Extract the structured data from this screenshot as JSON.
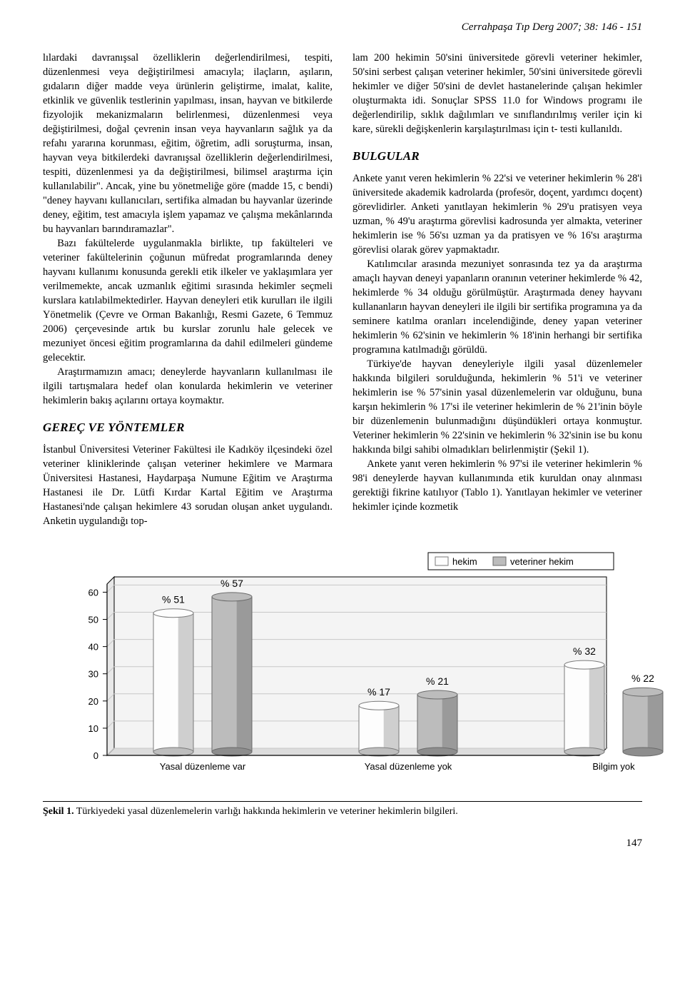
{
  "runningHead": "Cerrahpaşa Tıp Derg 2007; 38: 146 - 151",
  "left": {
    "p1": "lılardaki davranışsal özelliklerin değerlendirilmesi, tespiti, düzenlenmesi veya değiştirilmesi amacıyla; ilaçların, aşıların, gıdaların diğer madde veya ürünlerin geliştirme, imalat, kalite, etkinlik ve güvenlik testlerinin yapılması, insan, hayvan ve bitkilerde fizyolojik mekanizmaların belirlenmesi, düzenlenmesi veya değiştirilmesi, doğal çevrenin insan veya hayvanların sağlık ya da refahı yararına korunması, eğitim, öğretim, adli soruşturma, insan, hayvan veya bitkilerdeki davranışsal özelliklerin değerlendirilmesi, tespiti, düzenlenmesi ya da değiştirilmesi, bilimsel araştırma için kullanılabilir\". Ancak, yine bu yönetmeliğe göre (madde 15, c bendi) \"deney hayvanı kullanıcıları, sertifika almadan bu hayvanlar üzerinde deney, eğitim, test amacıyla işlem yapamaz ve çalışma mekânlarında bu hayvanları barındıramazlar\".",
    "p2": "Bazı fakültelerde uygulanmakla birlikte, tıp fakülteleri ve veteriner fakültelerinin çoğunun müfredat programlarında deney hayvanı kullanımı konusunda gerekli etik ilkeler ve yaklaşımlara yer verilmemekte, ancak uzmanlık eğitimi sırasında hekimler seçmeli kurslara katılabilmektedirler. Hayvan deneyleri etik kurulları ile ilgili Yönetmelik (Çevre ve Orman Bakanlığı, Resmi Gazete, 6 Temmuz 2006) çerçevesinde artık bu kurslar zorunlu hale gelecek ve mezuniyet öncesi eğitim programlarına da dahil edilmeleri gündeme gelecektir.",
    "p3": "Araştırmamızın amacı; deneylerde hayvanların kullanılması ile ilgili tartışmalara hedef olan konularda hekimlerin ve veteriner hekimlerin bakış açılarını ortaya koymaktır.",
    "h1": "GEREÇ VE YÖNTEMLER",
    "p4": "İstanbul Üniversitesi Veteriner Fakültesi ile Kadıköy ilçesindeki özel veteriner kliniklerinde çalışan veteriner hekimlere ve Marmara Üniversitesi Hastanesi, Haydarpaşa Numune Eğitim ve Araştırma Hastanesi ile Dr. Lütfi Kırdar Kartal Eğitim ve Araştırma Hastanesi'nde çalışan hekimlere 43 sorudan oluşan anket uygulandı. Anketin uygulandığı top-"
  },
  "right": {
    "p1": "lam 200 hekimin 50'sini üniversitede görevli veteriner hekimler, 50'sini serbest çalışan veteriner hekimler, 50'sini üniversitede görevli hekimler ve diğer 50'sini de devlet hastanelerinde çalışan hekimler oluşturmakta idi. Sonuçlar SPSS 11.0 for Windows programı ile değerlendirilip, sıklık dağılımları ve sınıflandırılmış veriler için ki kare, sürekli değişkenlerin karşılaştırılması için t- testi kullanıldı.",
    "h1": "BULGULAR",
    "p2": "Ankete yanıt veren hekimlerin % 22'si ve veteriner hekimlerin % 28'i üniversitede akademik kadrolarda (profesör, doçent, yardımcı doçent) görevlidirler. Anketi yanıtlayan hekimlerin % 29'u pratisyen veya uzman, % 49'u araştırma görevlisi kadrosunda yer almakta, veteriner hekimlerin ise % 56'sı uzman ya da pratisyen ve % 16'sı araştırma görevlisi olarak görev yapmaktadır.",
    "p3": "Katılımcılar arasında mezuniyet sonrasında tez ya da araştırma amaçlı hayvan deneyi yapanların oranının veteriner hekimlerde % 42, hekimlerde % 34 olduğu görülmüştür. Araştırmada deney hayvanı kullananların hayvan deneyleri ile ilgili bir sertifika programına ya da seminere katılma oranları incelendiğinde, deney yapan veteriner hekimlerin % 62'sinin ve hekimlerin % 18'inin herhangi bir sertifika programına katılmadığı görüldü.",
    "p4": "Türkiye'de hayvan deneyleriyle ilgili yasal düzenlemeler hakkında bilgileri sorulduğunda, hekimlerin % 51'i ve veteriner hekimlerin ise % 57'sinin yasal düzenlemelerin var olduğunu, buna karşın hekimlerin % 17'si ile veteriner hekimlerin de % 21'inin böyle bir düzenlemenin bulunmadığını düşündükleri ortaya konmuştur. Veteriner hekimlerin % 22'sinin ve hekimlerin % 32'sinin ise bu konu hakkında bilgi sahibi olmadıkları belirlenmiştir (Şekil 1).",
    "p5": "Ankete yanıt veren hekimlerin % 97'si ile veteriner hekimlerin % 98'i deneylerde hayvan kullanımında etik kuruldan onay alınması gerektiği fikrine katılıyor (Tablo 1). Yanıtlayan hekimler ve veteriner hekimler içinde kozmetik"
  },
  "chart": {
    "type": "bar",
    "categories": [
      "Yasal düzenleme var",
      "Yasal düzenleme yok",
      "Bilgim yok"
    ],
    "series": [
      {
        "name": "hekim",
        "values": [
          51,
          17,
          32
        ],
        "valueLabels": [
          "% 51",
          "% 17",
          "% 32"
        ],
        "fill": "#fdfdfd",
        "stroke": "#7a7a7a"
      },
      {
        "name": "veteriner hekim",
        "values": [
          57,
          21,
          22
        ],
        "valueLabels": [
          "% 57",
          "% 21",
          "% 22"
        ],
        "fill": "#bcbcbc",
        "stroke": "#6a6a6a"
      }
    ],
    "yTicks": [
      0,
      10,
      20,
      30,
      40,
      50,
      60
    ],
    "yMax": 63,
    "background": "#ffffff",
    "gridColor": "#000000",
    "axisColor": "#000000",
    "axisFontSize": 13,
    "labelFontSize": 13,
    "legendFontSize": 13,
    "valueFontSize": 14,
    "barDepth": 10,
    "barWidth": 56,
    "groupGap": 150,
    "innerGap": 26,
    "legendBox": {
      "stroke": "#000000",
      "fill": "#ffffff"
    }
  },
  "figCaption": {
    "label": "Şekil 1.",
    "text": "Türkiyedeki yasal düzenlemelerin varlığı hakkında hekimlerin ve veteriner hekimlerin bilgileri."
  },
  "pageNumber": "147"
}
